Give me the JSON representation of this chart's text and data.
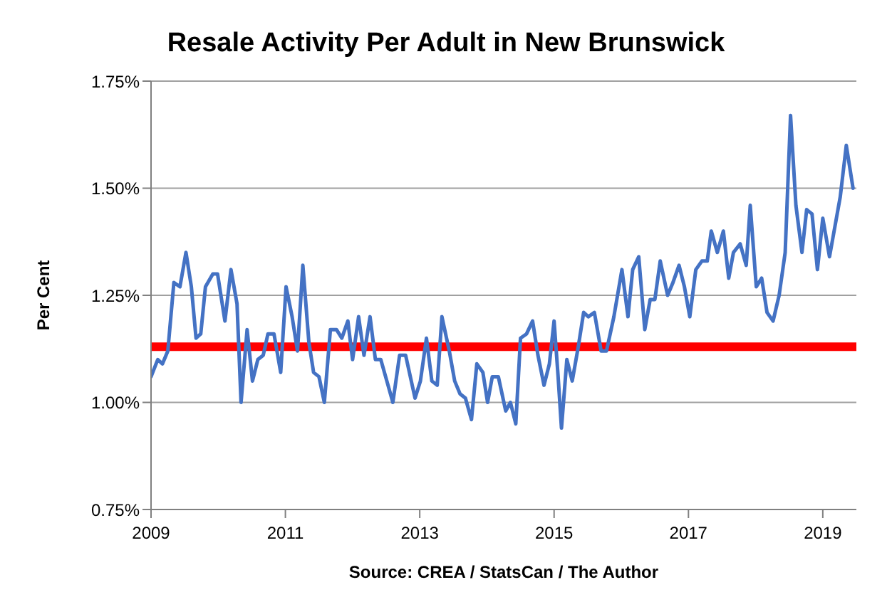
{
  "chart_data": {
    "type": "line",
    "title": "Resale Activity Per Adult in New Brunswick",
    "ylabel": "Per Cent",
    "annotations": [
      "Source:  CREA  / StatsCan  / The Author"
    ],
    "x": [
      2009.0,
      2009.1,
      2009.17,
      2009.25,
      2009.34,
      2009.43,
      2009.52,
      2009.6,
      2009.67,
      2009.74,
      2009.81,
      2009.92,
      2009.99,
      2010.1,
      2010.19,
      2010.28,
      2010.34,
      2010.43,
      2010.51,
      2010.59,
      2010.67,
      2010.74,
      2010.83,
      2010.93,
      2011.01,
      2011.1,
      2011.18,
      2011.26,
      2011.35,
      2011.42,
      2011.5,
      2011.58,
      2011.67,
      2011.76,
      2011.84,
      2011.93,
      2012.0,
      2012.09,
      2012.17,
      2012.26,
      2012.34,
      2012.42,
      2012.51,
      2012.6,
      2012.7,
      2012.79,
      2012.93,
      2013.01,
      2013.1,
      2013.18,
      2013.26,
      2013.33,
      2013.44,
      2013.52,
      2013.6,
      2013.68,
      2013.77,
      2013.85,
      2013.94,
      2014.01,
      2014.08,
      2014.17,
      2014.28,
      2014.35,
      2014.43,
      2014.5,
      2014.59,
      2014.68,
      2014.76,
      2014.85,
      2014.93,
      2015.0,
      2015.06,
      2015.11,
      2015.19,
      2015.27,
      2015.36,
      2015.44,
      2015.51,
      2015.6,
      2015.7,
      2015.78,
      2015.89,
      2016.01,
      2016.1,
      2016.17,
      2016.26,
      2016.35,
      2016.43,
      2016.5,
      2016.58,
      2016.69,
      2016.77,
      2016.86,
      2016.94,
      2017.02,
      2017.11,
      2017.2,
      2017.28,
      2017.34,
      2017.43,
      2017.52,
      2017.6,
      2017.67,
      2017.77,
      2017.86,
      2017.92,
      2018.01,
      2018.09,
      2018.17,
      2018.26,
      2018.35,
      2018.44,
      2018.52,
      2018.6,
      2018.69,
      2018.76,
      2018.84,
      2018.92,
      2019.0,
      2019.1,
      2019.18,
      2019.26,
      2019.35,
      2019.45
    ],
    "series": [
      {
        "color": "#4472c4",
        "values": [
          1.06,
          1.1,
          1.09,
          1.12,
          1.28,
          1.27,
          1.35,
          1.27,
          1.15,
          1.16,
          1.27,
          1.3,
          1.3,
          1.19,
          1.31,
          1.23,
          1.0,
          1.17,
          1.05,
          1.1,
          1.11,
          1.16,
          1.16,
          1.07,
          1.27,
          1.2,
          1.12,
          1.32,
          1.14,
          1.07,
          1.06,
          1.0,
          1.17,
          1.17,
          1.15,
          1.19,
          1.1,
          1.2,
          1.11,
          1.2,
          1.1,
          1.1,
          1.05,
          1.0,
          1.11,
          1.11,
          1.01,
          1.05,
          1.15,
          1.05,
          1.04,
          1.2,
          1.12,
          1.05,
          1.02,
          1.01,
          0.96,
          1.09,
          1.07,
          1.0,
          1.06,
          1.06,
          0.98,
          1.0,
          0.95,
          1.15,
          1.16,
          1.19,
          1.11,
          1.04,
          1.09,
          1.19,
          1.06,
          0.94,
          1.1,
          1.05,
          1.13,
          1.21,
          1.2,
          1.21,
          1.12,
          1.12,
          1.2,
          1.31,
          1.2,
          1.31,
          1.34,
          1.17,
          1.24,
          1.24,
          1.33,
          1.25,
          1.28,
          1.32,
          1.27,
          1.2,
          1.31,
          1.33,
          1.33,
          1.4,
          1.35,
          1.4,
          1.29,
          1.35,
          1.37,
          1.32,
          1.46,
          1.27,
          1.29,
          1.21,
          1.19,
          1.25,
          1.35,
          1.67,
          1.46,
          1.35,
          1.45,
          1.44,
          1.31,
          1.43,
          1.34,
          1.41,
          1.48,
          1.6,
          1.5
        ]
      }
    ],
    "xlim": [
      2009,
      2019.5
    ],
    "xticks": [
      2009,
      2011,
      2013,
      2015,
      2017,
      2019
    ],
    "ylim": [
      0.75,
      1.75
    ],
    "yticks": [
      {
        "value": 0.75,
        "label": "0.75%"
      },
      {
        "value": 1.0,
        "label": "1.00%"
      },
      {
        "value": 1.25,
        "label": "1.25%"
      },
      {
        "value": 1.5,
        "label": "1.50%"
      },
      {
        "value": 1.75,
        "label": "1.75%"
      }
    ],
    "grid": "y",
    "marker": "none",
    "line_style": "solid",
    "ref_lines": [
      {
        "axis": "y",
        "value": 1.13,
        "color": "#ff0000"
      }
    ]
  }
}
